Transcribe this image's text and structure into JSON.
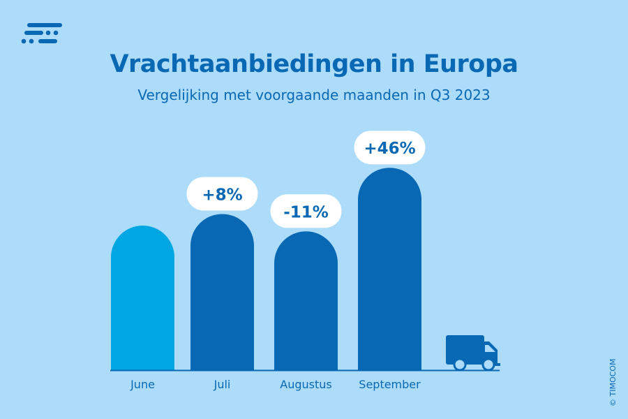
{
  "title": "Vrachtaanbiedingen in Europa",
  "subtitle": "Vergelijking met voorgaande maanden in Q3 2023",
  "copyright": "© TIMOCOM",
  "colors": {
    "background": "#ADDCFA",
    "dark": "#0868B3",
    "light": "#00A6E2"
  },
  "chart_data": {
    "type": "bar",
    "title": "Vrachtaanbiedingen in Europa",
    "subtitle": "Vergelijking met voorgaande maanden in Q3 2023",
    "categories": [
      "June",
      "Juli",
      "Augustus",
      "September"
    ],
    "values": [
      100,
      108,
      96,
      140
    ],
    "value_unit": "index (June = 100)",
    "change_labels": [
      "",
      "+8%",
      "-11%",
      "+46%"
    ],
    "ylim": [
      0,
      150
    ],
    "grid": false
  }
}
